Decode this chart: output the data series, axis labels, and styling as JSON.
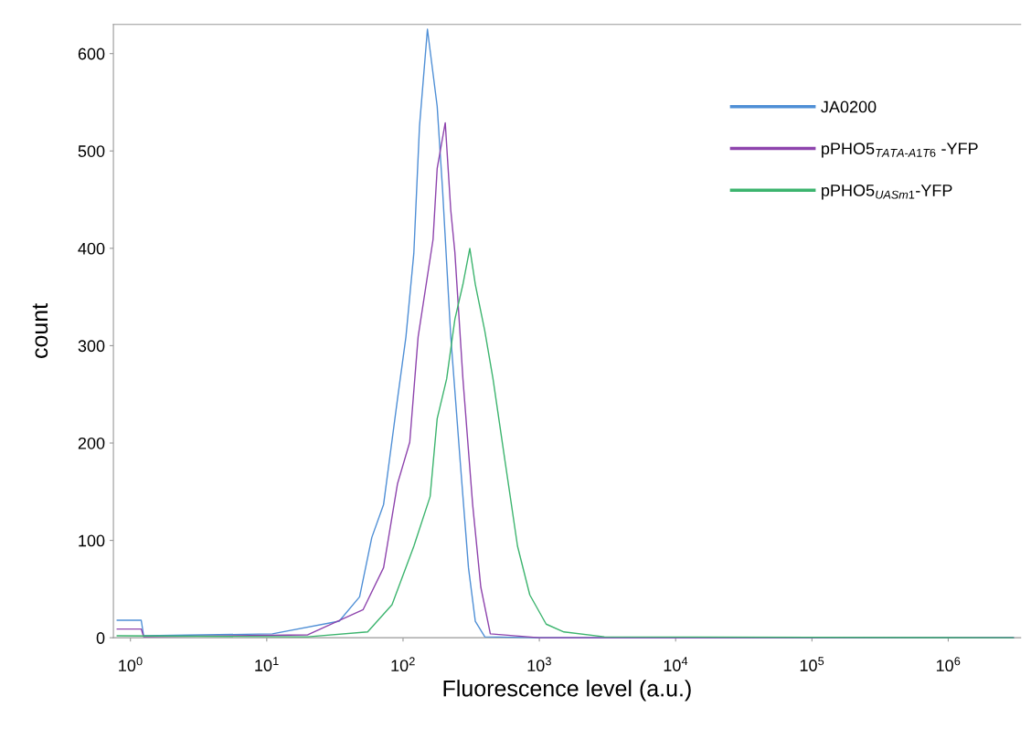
{
  "chart_data": {
    "type": "line",
    "xlabel": "Fluorescence level (a.u.)",
    "ylabel": "count",
    "log": "x",
    "xlim": [
      0.75,
      3400000
    ],
    "ylim": [
      0,
      630
    ],
    "xticks": [
      {
        "value": 1,
        "label": "10$^{0}$"
      },
      {
        "value": 10,
        "label": "10$^{1}$"
      },
      {
        "value": 100,
        "label": "10$^{2}$"
      },
      {
        "value": 1000,
        "label": "10$^{3}$"
      },
      {
        "value": 10000,
        "label": "10$^{4}$"
      },
      {
        "value": 100000,
        "label": "10$^{5}$"
      },
      {
        "value": 1000000,
        "label": "10$^{6}$"
      }
    ],
    "yticks": [
      0,
      100,
      200,
      300,
      400,
      500,
      600
    ],
    "grid": false,
    "legend": "top right",
    "marker": "none",
    "line_style": "solid",
    "series": [
      {
        "name": "JA0200",
        "color": "#4f8fd6",
        "x": [
          0.8,
          1.2,
          1.25,
          11,
          34,
          48,
          59,
          72,
          91,
          105,
          120,
          132,
          151,
          178,
          195,
          224,
          263,
          302,
          339,
          398,
          1000,
          3000000
        ],
        "values": [
          18,
          18,
          2,
          4,
          17,
          42,
          103,
          137,
          245,
          309,
          395,
          525,
          625,
          546,
          460,
          309,
          180,
          72,
          17,
          1,
          0,
          0
        ]
      },
      {
        "name": "pPHO5$_{TATA-A1T6}$ -YFP",
        "color": "#8e44ad",
        "x": [
          0.8,
          1.2,
          1.25,
          20,
          51,
          72,
          91,
          112,
          129,
          166,
          178,
          204,
          224,
          240,
          275,
          324,
          372,
          437,
          1000,
          3000000
        ],
        "values": [
          9,
          9,
          1,
          3,
          29,
          72,
          158,
          201,
          309,
          409,
          482,
          529,
          439,
          396,
          266,
          137,
          52,
          4,
          0,
          0
        ]
      },
      {
        "name": "pPHO5$_{UASm1}$-YFP",
        "color": "#3cb46e",
        "x": [
          0.8,
          20,
          55,
          83,
          120,
          158,
          178,
          209,
          240,
          275,
          309,
          339,
          398,
          457,
          562,
          692,
          851,
          1122,
          1514,
          3000,
          3000000
        ],
        "values": [
          2,
          1,
          6,
          34,
          94,
          145,
          225,
          266,
          327,
          363,
          400,
          363,
          315,
          266,
          180,
          94,
          44,
          14,
          6,
          1,
          0
        ]
      }
    ]
  }
}
